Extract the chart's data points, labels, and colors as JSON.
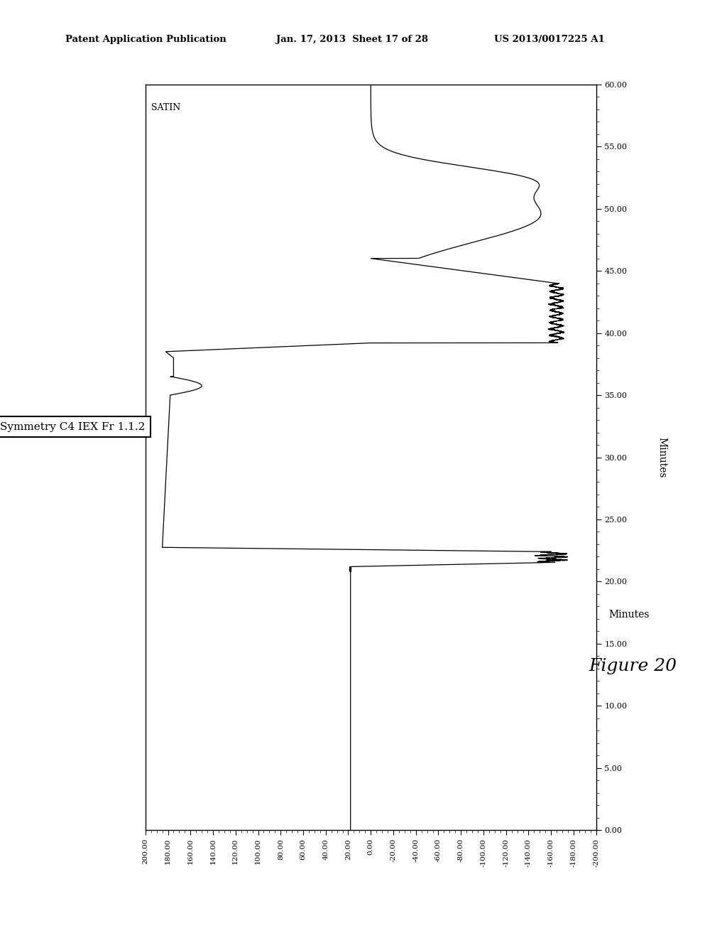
{
  "header_left": "Patent Application Publication",
  "header_center": "Jan. 17, 2013  Sheet 17 of 28",
  "header_right": "US 2013/0017225 A1",
  "figure_label": "Figure 20",
  "minutes_label": "Minutes",
  "satin_label": "SATIN",
  "box_label": "Symmetry C4 IEX Fr 1.1.2",
  "ylim": [
    0.0,
    60.0
  ],
  "xlim": [
    200.0,
    -200.0
  ],
  "yticks": [
    0.0,
    5.0,
    10.0,
    15.0,
    20.0,
    25.0,
    30.0,
    35.0,
    40.0,
    45.0,
    50.0,
    55.0,
    60.0
  ],
  "xticks": [
    200.0,
    180.0,
    160.0,
    140.0,
    120.0,
    100.0,
    80.0,
    60.0,
    40.0,
    20.0,
    0.0,
    -20.0,
    -40.0,
    -60.0,
    -80.0,
    -100.0,
    -120.0,
    -140.0,
    -160.0,
    -180.0,
    -200.0
  ],
  "background_color": "#ffffff",
  "line_color": "#000000"
}
